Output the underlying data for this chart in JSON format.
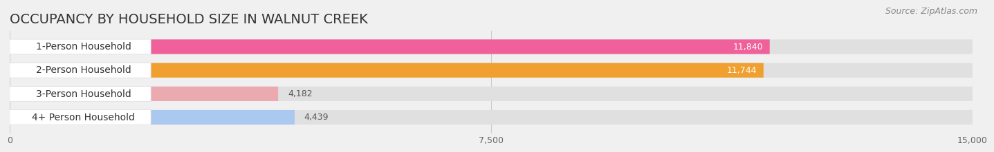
{
  "title": "OCCUPANCY BY HOUSEHOLD SIZE IN WALNUT CREEK",
  "source": "Source: ZipAtlas.com",
  "categories": [
    "1-Person Household",
    "2-Person Household",
    "3-Person Household",
    "4+ Person Household"
  ],
  "values": [
    11840,
    11744,
    4182,
    4439
  ],
  "bar_colors": [
    "#f0609a",
    "#f0a030",
    "#eaaab0",
    "#aac8f0"
  ],
  "background_color": "#f0f0f0",
  "bar_bg_color": "#e0e0e0",
  "xlim": [
    0,
    15000
  ],
  "xticks": [
    0,
    7500,
    15000
  ],
  "xtick_labels": [
    "0",
    "7,500",
    "15,000"
  ],
  "title_fontsize": 14,
  "source_fontsize": 9,
  "label_fontsize": 10,
  "value_fontsize": 9
}
